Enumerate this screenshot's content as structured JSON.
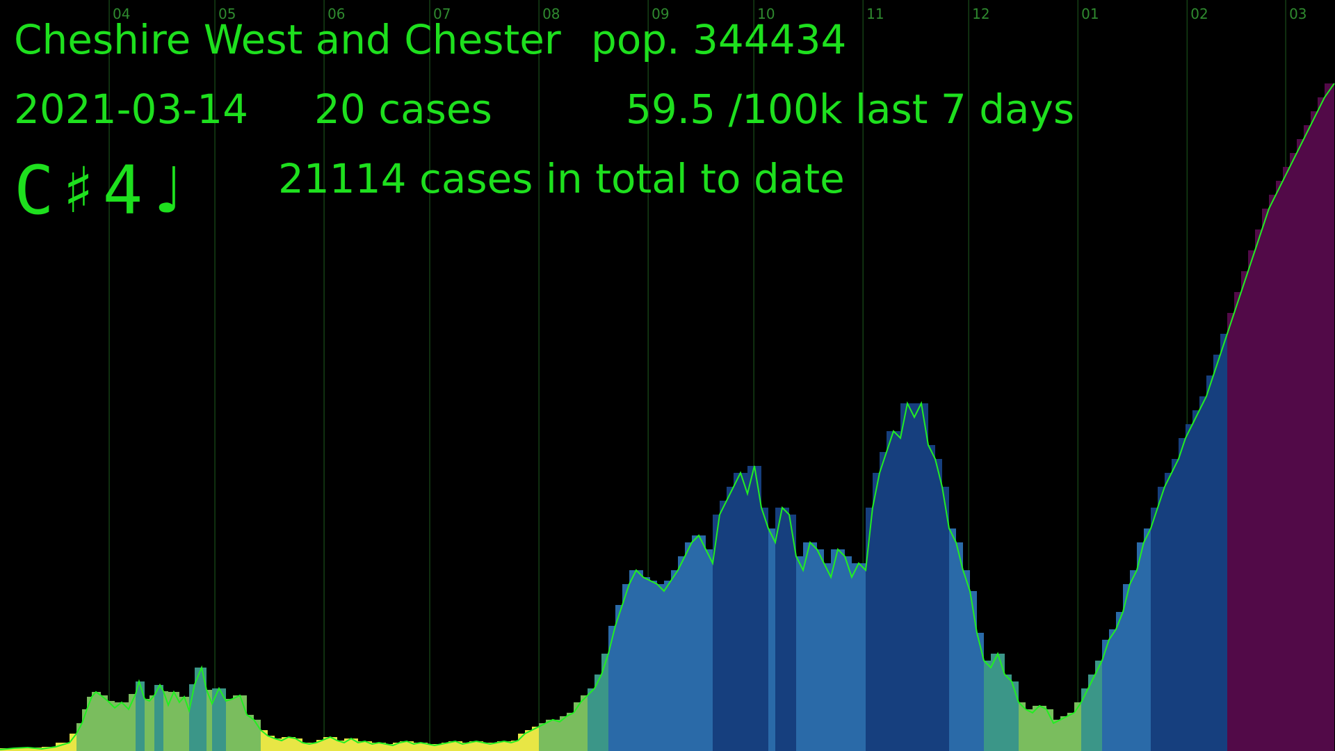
{
  "header": {
    "area": "Cheshire West and Chester",
    "population": "pop. 344434",
    "date": "2021-03-14",
    "cases_today": "20 cases",
    "rate": "59.5 /100k last 7 days",
    "note": "C♯4♩",
    "total": "21114 cases in total to date"
  },
  "colors": {
    "text": "#1ee01e",
    "gridline": "#1f5f1f",
    "month_label": "#2f8a2f",
    "trace": "#22ee22",
    "palette": [
      "#e8e645",
      "#7abd5e",
      "#3b9688",
      "#2a6aa8",
      "#163f7e",
      "#520a48"
    ]
  },
  "chart_data": {
    "type": "bar",
    "title": "",
    "xlabel": "",
    "ylabel": "",
    "x_range": [
      "2020-03-01",
      "2021-03-15"
    ],
    "y_range": [
      0,
      1080
    ],
    "month_ticks": [
      "04",
      "05",
      "06",
      "07",
      "08",
      "09",
      "10",
      "11",
      "12",
      "01",
      "02",
      "03"
    ],
    "month_tick_dates": [
      "2020-04-01",
      "2020-05-01",
      "2020-06-01",
      "2020-07-01",
      "2020-08-01",
      "2020-09-01",
      "2020-10-01",
      "2020-11-01",
      "2020-12-01",
      "2021-01-01",
      "2021-02-01",
      "2021-03-01"
    ],
    "series": [
      {
        "values": [
          [
            0,
            2
          ],
          [
            20,
            4
          ],
          [
            40,
            5
          ],
          [
            60,
            3
          ],
          [
            80,
            6
          ],
          [
            100,
            12
          ],
          [
            110,
            25
          ],
          [
            118,
            40
          ],
          [
            125,
            60
          ],
          [
            132,
            78
          ],
          [
            138,
            85
          ],
          [
            145,
            80
          ],
          [
            155,
            72
          ],
          [
            165,
            62
          ],
          [
            175,
            70
          ],
          [
            185,
            60
          ],
          [
            195,
            82
          ],
          [
            200,
            100
          ],
          [
            208,
            75
          ],
          [
            215,
            72
          ],
          [
            222,
            80
          ],
          [
            230,
            95
          ],
          [
            235,
            86
          ],
          [
            242,
            66
          ],
          [
            250,
            85
          ],
          [
            258,
            70
          ],
          [
            265,
            78
          ],
          [
            272,
            58
          ],
          [
            280,
            96
          ],
          [
            290,
            120
          ],
          [
            297,
            88
          ],
          [
            305,
            68
          ],
          [
            315,
            90
          ],
          [
            325,
            72
          ],
          [
            335,
            75
          ],
          [
            345,
            80
          ],
          [
            355,
            52
          ],
          [
            365,
            45
          ],
          [
            375,
            30
          ],
          [
            385,
            22
          ],
          [
            395,
            18
          ],
          [
            405,
            15
          ],
          [
            415,
            20
          ],
          [
            425,
            18
          ],
          [
            435,
            12
          ],
          [
            445,
            10
          ],
          [
            455,
            12
          ],
          [
            465,
            16
          ],
          [
            475,
            20
          ],
          [
            485,
            15
          ],
          [
            495,
            12
          ],
          [
            505,
            18
          ],
          [
            515,
            12
          ],
          [
            525,
            14
          ],
          [
            535,
            10
          ],
          [
            545,
            12
          ],
          [
            555,
            10
          ],
          [
            565,
            8
          ],
          [
            575,
            12
          ],
          [
            585,
            14
          ],
          [
            595,
            10
          ],
          [
            605,
            12
          ],
          [
            615,
            10
          ],
          [
            625,
            8
          ],
          [
            635,
            10
          ],
          [
            645,
            12
          ],
          [
            655,
            14
          ],
          [
            665,
            10
          ],
          [
            675,
            12
          ],
          [
            685,
            14
          ],
          [
            695,
            12
          ],
          [
            705,
            10
          ],
          [
            715,
            12
          ],
          [
            725,
            14
          ],
          [
            735,
            12
          ],
          [
            745,
            15
          ],
          [
            755,
            25
          ],
          [
            765,
            30
          ],
          [
            775,
            35
          ],
          [
            785,
            40
          ],
          [
            795,
            45
          ],
          [
            805,
            42
          ],
          [
            815,
            50
          ],
          [
            825,
            55
          ],
          [
            835,
            70
          ],
          [
            845,
            80
          ],
          [
            855,
            90
          ],
          [
            865,
            110
          ],
          [
            875,
            140
          ],
          [
            885,
            180
          ],
          [
            895,
            210
          ],
          [
            905,
            240
          ],
          [
            915,
            260
          ],
          [
            925,
            250
          ],
          [
            935,
            245
          ],
          [
            945,
            240
          ],
          [
            955,
            230
          ],
          [
            965,
            245
          ],
          [
            975,
            260
          ],
          [
            985,
            280
          ],
          [
            995,
            300
          ],
          [
            1005,
            310
          ],
          [
            1015,
            290
          ],
          [
            1025,
            270
          ],
          [
            1035,
            340
          ],
          [
            1045,
            360
          ],
          [
            1055,
            380
          ],
          [
            1065,
            400
          ],
          [
            1075,
            370
          ],
          [
            1085,
            410
          ],
          [
            1095,
            350
          ],
          [
            1105,
            320
          ],
          [
            1115,
            300
          ],
          [
            1125,
            350
          ],
          [
            1135,
            340
          ],
          [
            1145,
            280
          ],
          [
            1155,
            260
          ],
          [
            1165,
            300
          ],
          [
            1175,
            290
          ],
          [
            1185,
            270
          ],
          [
            1195,
            250
          ],
          [
            1205,
            290
          ],
          [
            1215,
            280
          ],
          [
            1225,
            250
          ],
          [
            1235,
            270
          ],
          [
            1245,
            260
          ],
          [
            1255,
            350
          ],
          [
            1265,
            400
          ],
          [
            1275,
            430
          ],
          [
            1285,
            460
          ],
          [
            1295,
            450
          ],
          [
            1305,
            500
          ],
          [
            1315,
            480
          ],
          [
            1325,
            500
          ],
          [
            1335,
            440
          ],
          [
            1345,
            420
          ],
          [
            1355,
            380
          ],
          [
            1365,
            320
          ],
          [
            1375,
            300
          ],
          [
            1385,
            260
          ],
          [
            1395,
            230
          ],
          [
            1405,
            170
          ],
          [
            1415,
            130
          ],
          [
            1425,
            120
          ],
          [
            1435,
            140
          ],
          [
            1445,
            110
          ],
          [
            1455,
            100
          ],
          [
            1465,
            70
          ],
          [
            1475,
            60
          ],
          [
            1485,
            55
          ],
          [
            1495,
            65
          ],
          [
            1505,
            60
          ],
          [
            1515,
            40
          ],
          [
            1525,
            45
          ],
          [
            1535,
            50
          ],
          [
            1545,
            55
          ],
          [
            1555,
            70
          ],
          [
            1565,
            90
          ],
          [
            1575,
            110
          ],
          [
            1585,
            130
          ],
          [
            1595,
            160
          ],
          [
            1605,
            175
          ],
          [
            1615,
            200
          ],
          [
            1625,
            240
          ],
          [
            1635,
            260
          ],
          [
            1645,
            300
          ],
          [
            1655,
            320
          ],
          [
            1665,
            350
          ],
          [
            1675,
            380
          ],
          [
            1685,
            400
          ],
          [
            1695,
            420
          ],
          [
            1705,
            450
          ],
          [
            1715,
            470
          ],
          [
            1725,
            490
          ],
          [
            1735,
            510
          ],
          [
            1745,
            540
          ],
          [
            1755,
            570
          ],
          [
            1765,
            600
          ],
          [
            1775,
            630
          ],
          [
            1785,
            660
          ],
          [
            1795,
            690
          ],
          [
            1805,
            720
          ],
          [
            1815,
            750
          ],
          [
            1825,
            780
          ],
          [
            1835,
            800
          ],
          [
            1845,
            820
          ],
          [
            1855,
            840
          ],
          [
            1865,
            860
          ],
          [
            1875,
            880
          ],
          [
            1885,
            900
          ],
          [
            1895,
            920
          ],
          [
            1905,
            940
          ],
          [
            1919,
            960
          ]
        ]
      }
    ],
    "bar_values": []
  }
}
